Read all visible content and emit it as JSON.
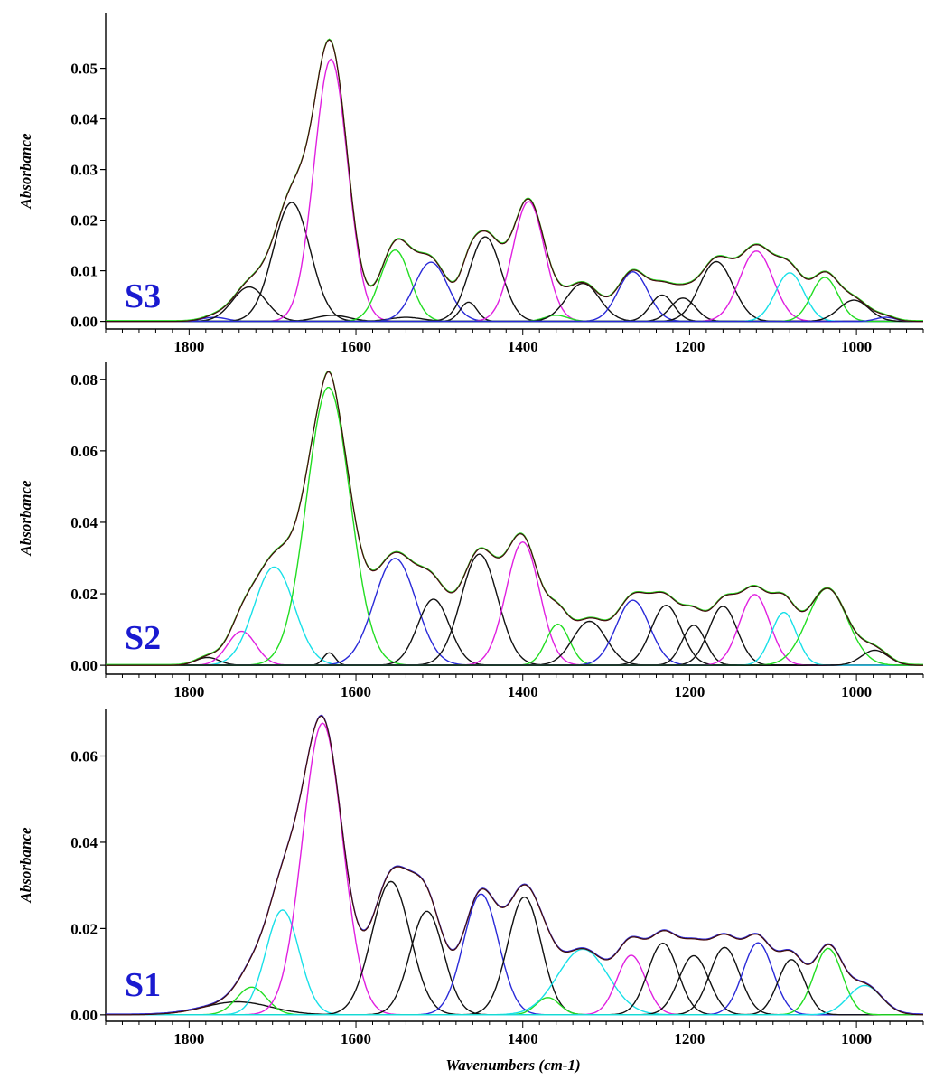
{
  "figure": {
    "xlabel": "Wavenumbers (cm-1)",
    "panel_ylabel": "Absorbance"
  },
  "colors": {
    "black": "#111111",
    "magenta": "#e020e0",
    "green": "#22dd22",
    "blue": "#2a2ad8",
    "cyan": "#18e0e8",
    "red": "#e01818",
    "label_blue": "#1a1ad0"
  },
  "chart_data": [
    {
      "type": "line",
      "panel": "S3",
      "label": "S3",
      "xlabel": "",
      "ylabel": "Absorbance",
      "xlim": [
        1900,
        920
      ],
      "ylim": [
        -0.0015,
        0.061
      ],
      "xticks": [
        "1800",
        "1600",
        "1400",
        "1200",
        "1000"
      ],
      "xtick_values": [
        1800,
        1600,
        1400,
        1200,
        1000
      ],
      "yticks": [
        "0.00",
        "0.01",
        "0.02",
        "0.03",
        "0.04",
        "0.05"
      ],
      "ytick_values": [
        0.0,
        0.01,
        0.02,
        0.03,
        0.04,
        0.05
      ],
      "components": [
        {
          "center": 1770,
          "amplitude": 0.0008,
          "width": 15,
          "color": "blue"
        },
        {
          "center": 1728,
          "amplitude": 0.0068,
          "width": 20,
          "color": "black"
        },
        {
          "center": 1677,
          "amplitude": 0.0235,
          "width": 22,
          "color": "black"
        },
        {
          "center": 1630,
          "amplitude": 0.0518,
          "width": 20,
          "color": "magenta"
        },
        {
          "center": 1628,
          "amplitude": 0.0012,
          "width": 20,
          "color": "black"
        },
        {
          "center": 1553,
          "amplitude": 0.0141,
          "width": 18,
          "color": "green"
        },
        {
          "center": 1540,
          "amplitude": 0.0008,
          "width": 20,
          "color": "black"
        },
        {
          "center": 1510,
          "amplitude": 0.0117,
          "width": 20,
          "color": "blue"
        },
        {
          "center": 1465,
          "amplitude": 0.0038,
          "width": 10,
          "color": "black"
        },
        {
          "center": 1445,
          "amplitude": 0.0167,
          "width": 19,
          "color": "black"
        },
        {
          "center": 1393,
          "amplitude": 0.0237,
          "width": 19,
          "color": "magenta"
        },
        {
          "center": 1360,
          "amplitude": 0.0012,
          "width": 14,
          "color": "green"
        },
        {
          "center": 1328,
          "amplitude": 0.0075,
          "width": 20,
          "color": "black"
        },
        {
          "center": 1268,
          "amplitude": 0.0098,
          "width": 18,
          "color": "blue"
        },
        {
          "center": 1233,
          "amplitude": 0.0052,
          "width": 14,
          "color": "black"
        },
        {
          "center": 1208,
          "amplitude": 0.0046,
          "width": 15,
          "color": "black"
        },
        {
          "center": 1168,
          "amplitude": 0.0118,
          "width": 20,
          "color": "black"
        },
        {
          "center": 1120,
          "amplitude": 0.0139,
          "width": 20,
          "color": "magenta"
        },
        {
          "center": 1080,
          "amplitude": 0.0096,
          "width": 17,
          "color": "cyan"
        },
        {
          "center": 1038,
          "amplitude": 0.0087,
          "width": 16,
          "color": "green"
        },
        {
          "center": 1003,
          "amplitude": 0.0042,
          "width": 18,
          "color": "black"
        },
        {
          "center": 965,
          "amplitude": 0.0008,
          "width": 12,
          "color": "blue"
        }
      ]
    },
    {
      "type": "line",
      "panel": "S2",
      "label": "S2",
      "xlabel": "",
      "ylabel": "Absorbance",
      "xlim": [
        1900,
        920
      ],
      "ylim": [
        -0.0025,
        0.085
      ],
      "xticks": [
        "1800",
        "1600",
        "1400",
        "1200",
        "1000"
      ],
      "xtick_values": [
        1800,
        1600,
        1400,
        1200,
        1000
      ],
      "yticks": [
        "0.00",
        "0.02",
        "0.04",
        "0.06",
        "0.08"
      ],
      "ytick_values": [
        0.0,
        0.02,
        0.04,
        0.06,
        0.08
      ],
      "components": [
        {
          "center": 1778,
          "amplitude": 0.0022,
          "width": 14,
          "color": "black"
        },
        {
          "center": 1737,
          "amplitude": 0.0095,
          "width": 17,
          "color": "magenta"
        },
        {
          "center": 1698,
          "amplitude": 0.0275,
          "width": 24,
          "color": "cyan"
        },
        {
          "center": 1633,
          "amplitude": 0.0778,
          "width": 26,
          "color": "green"
        },
        {
          "center": 1632,
          "amplitude": 0.0035,
          "width": 7,
          "color": "black"
        },
        {
          "center": 1553,
          "amplitude": 0.0299,
          "width": 25,
          "color": "blue"
        },
        {
          "center": 1507,
          "amplitude": 0.0185,
          "width": 19,
          "color": "black"
        },
        {
          "center": 1452,
          "amplitude": 0.0311,
          "width": 22,
          "color": "black"
        },
        {
          "center": 1400,
          "amplitude": 0.0345,
          "width": 20,
          "color": "magenta"
        },
        {
          "center": 1358,
          "amplitude": 0.0115,
          "width": 14,
          "color": "green"
        },
        {
          "center": 1320,
          "amplitude": 0.0123,
          "width": 20,
          "color": "black"
        },
        {
          "center": 1268,
          "amplitude": 0.0182,
          "width": 20,
          "color": "blue"
        },
        {
          "center": 1228,
          "amplitude": 0.0168,
          "width": 18,
          "color": "black"
        },
        {
          "center": 1195,
          "amplitude": 0.0112,
          "width": 14,
          "color": "black"
        },
        {
          "center": 1160,
          "amplitude": 0.0165,
          "width": 17,
          "color": "black"
        },
        {
          "center": 1122,
          "amplitude": 0.0198,
          "width": 18,
          "color": "magenta"
        },
        {
          "center": 1087,
          "amplitude": 0.0148,
          "width": 15,
          "color": "cyan"
        },
        {
          "center": 1035,
          "amplitude": 0.0215,
          "width": 24,
          "color": "green"
        },
        {
          "center": 978,
          "amplitude": 0.0042,
          "width": 16,
          "color": "black"
        }
      ]
    },
    {
      "type": "line",
      "panel": "S1",
      "label": "S1",
      "xlabel": "Wavenumbers (cm-1)",
      "ylabel": "Absorbance",
      "xlim": [
        1900,
        920
      ],
      "ylim": [
        -0.0015,
        0.071
      ],
      "xticks": [
        "1800",
        "1600",
        "1400",
        "1200",
        "1000"
      ],
      "xtick_values": [
        1800,
        1600,
        1400,
        1200,
        1000
      ],
      "yticks": [
        "0.00",
        "0.02",
        "0.04",
        "0.06"
      ],
      "ytick_values": [
        0.0,
        0.02,
        0.04,
        0.06
      ],
      "components": [
        {
          "center": 1742,
          "amplitude": 0.003,
          "width": 40,
          "color": "black"
        },
        {
          "center": 1725,
          "amplitude": 0.0064,
          "width": 18,
          "color": "green"
        },
        {
          "center": 1688,
          "amplitude": 0.0243,
          "width": 20,
          "color": "cyan"
        },
        {
          "center": 1640,
          "amplitude": 0.0676,
          "width": 24,
          "color": "magenta"
        },
        {
          "center": 1558,
          "amplitude": 0.0309,
          "width": 23,
          "color": "black"
        },
        {
          "center": 1515,
          "amplitude": 0.024,
          "width": 20,
          "color": "black"
        },
        {
          "center": 1450,
          "amplitude": 0.028,
          "width": 21,
          "color": "blue"
        },
        {
          "center": 1398,
          "amplitude": 0.0273,
          "width": 20,
          "color": "black"
        },
        {
          "center": 1370,
          "amplitude": 0.004,
          "width": 14,
          "color": "green"
        },
        {
          "center": 1328,
          "amplitude": 0.0152,
          "width": 30,
          "color": "cyan"
        },
        {
          "center": 1270,
          "amplitude": 0.0138,
          "width": 17,
          "color": "magenta"
        },
        {
          "center": 1232,
          "amplitude": 0.0166,
          "width": 18,
          "color": "black"
        },
        {
          "center": 1195,
          "amplitude": 0.0137,
          "width": 18,
          "color": "black"
        },
        {
          "center": 1158,
          "amplitude": 0.0156,
          "width": 18,
          "color": "black"
        },
        {
          "center": 1118,
          "amplitude": 0.0167,
          "width": 18,
          "color": "blue"
        },
        {
          "center": 1078,
          "amplitude": 0.0128,
          "width": 16,
          "color": "black"
        },
        {
          "center": 1034,
          "amplitude": 0.0154,
          "width": 17,
          "color": "green"
        },
        {
          "center": 990,
          "amplitude": 0.0068,
          "width": 20,
          "color": "cyan"
        }
      ]
    }
  ]
}
